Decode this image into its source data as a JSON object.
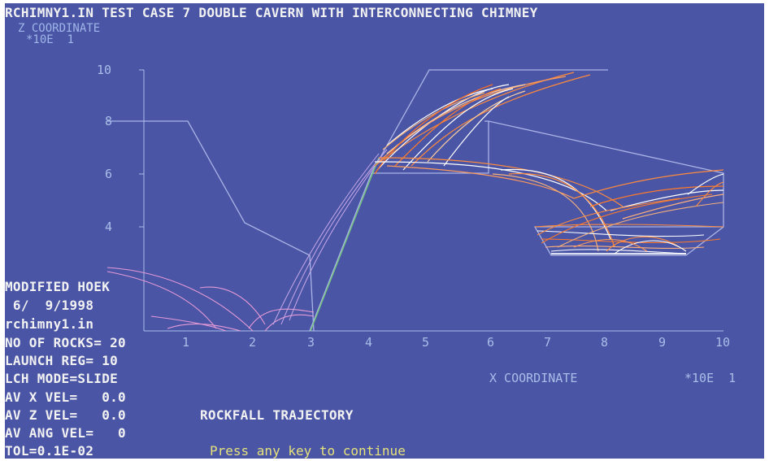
{
  "title": "RCHIMNY1.IN TEST CASE 7 DOUBLE CAVERN WITH INTERCONNECTING CHIMNEY",
  "z_axis": {
    "label": "Z COORDINATE",
    "scale": "*10E  1",
    "ticks": [
      "10",
      "8",
      "6",
      "4"
    ]
  },
  "x_axis": {
    "label": "X COORDINATE",
    "scale": "*10E  1",
    "ticks": [
      "1",
      "2",
      "3",
      "4",
      "5",
      "6",
      "7",
      "8",
      "9",
      "10"
    ]
  },
  "info": {
    "model": "MODIFIED HOEK",
    "date": " 6/  9/1998",
    "file": "rchimny1.in",
    "rocks": "NO OF ROCKS= 20",
    "launch": "LAUNCH REG= 10",
    "mode": "LCH MODE=SLIDE",
    "avx": "AV X VEL=   0.0",
    "avz": "AV Z VEL=   0.0",
    "avang": "AV ANG VEL=   0",
    "tol": "TOL=0.1E-02"
  },
  "plot_title": "ROCKFALL TRAJECTORY",
  "prompt": "Press any key to continue",
  "colors": {
    "background": "#4a55a6",
    "slope": "#aab4e6",
    "trajectory_orange": "#ff8a3c",
    "trajectory_white": "#ffffff",
    "trajectory_pink": "#e59ad6",
    "prompt": "#e6e27a"
  }
}
